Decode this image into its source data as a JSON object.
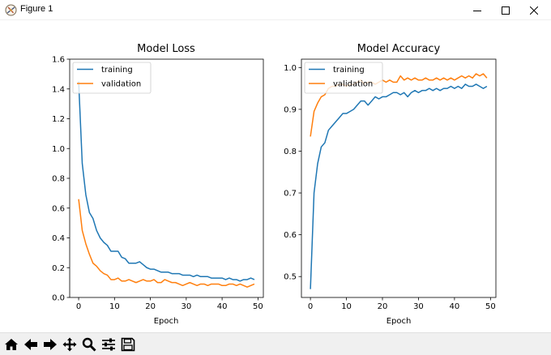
{
  "window": {
    "title": "Figure 1",
    "icons": [
      "figure-app-icon",
      "minimize-icon",
      "maximize-icon",
      "close-icon"
    ]
  },
  "toolbar": {
    "icons": [
      "home-icon",
      "back-arrow-icon",
      "forward-arrow-icon",
      "pan-move-icon",
      "zoom-magnifier-icon",
      "subplots-sliders-icon",
      "save-floppy-icon"
    ]
  },
  "colors": {
    "training": "#1f77b4",
    "validation": "#ff7f0e"
  },
  "chart_data": [
    {
      "type": "line",
      "title": "Model Loss",
      "xlabel": "Epoch",
      "ylabel": "",
      "xlim": [
        -2.5,
        51.5
      ],
      "ylim": [
        0.0,
        1.6
      ],
      "xticks": [
        "0",
        "10",
        "20",
        "30",
        "40",
        "50"
      ],
      "yticks": [
        "0.0",
        "0.2",
        "0.4",
        "0.6",
        "0.8",
        "1.0",
        "1.2",
        "1.4",
        "1.6"
      ],
      "grid": false,
      "legend": "upper-left",
      "legend_labels": [
        "training",
        "validation"
      ],
      "x": [
        0,
        1,
        2,
        3,
        4,
        5,
        6,
        7,
        8,
        9,
        10,
        11,
        12,
        13,
        14,
        15,
        16,
        17,
        18,
        19,
        20,
        21,
        22,
        23,
        24,
        25,
        26,
        27,
        28,
        29,
        30,
        31,
        32,
        33,
        34,
        35,
        36,
        37,
        38,
        39,
        40,
        41,
        42,
        43,
        44,
        45,
        46,
        47,
        48,
        49
      ],
      "series": [
        {
          "name": "training",
          "values": [
            1.45,
            0.9,
            0.69,
            0.57,
            0.53,
            0.45,
            0.4,
            0.37,
            0.35,
            0.31,
            0.31,
            0.31,
            0.27,
            0.26,
            0.23,
            0.23,
            0.23,
            0.24,
            0.22,
            0.2,
            0.19,
            0.19,
            0.18,
            0.17,
            0.17,
            0.17,
            0.16,
            0.16,
            0.16,
            0.15,
            0.15,
            0.15,
            0.14,
            0.15,
            0.14,
            0.14,
            0.14,
            0.13,
            0.13,
            0.13,
            0.13,
            0.12,
            0.13,
            0.12,
            0.12,
            0.11,
            0.12,
            0.12,
            0.13,
            0.12
          ]
        },
        {
          "name": "validation",
          "values": [
            0.66,
            0.45,
            0.36,
            0.29,
            0.23,
            0.21,
            0.18,
            0.16,
            0.15,
            0.12,
            0.12,
            0.13,
            0.11,
            0.11,
            0.12,
            0.11,
            0.1,
            0.11,
            0.12,
            0.11,
            0.11,
            0.12,
            0.1,
            0.1,
            0.12,
            0.11,
            0.1,
            0.1,
            0.09,
            0.08,
            0.09,
            0.1,
            0.09,
            0.08,
            0.09,
            0.09,
            0.08,
            0.09,
            0.09,
            0.09,
            0.08,
            0.08,
            0.09,
            0.09,
            0.08,
            0.09,
            0.08,
            0.07,
            0.08,
            0.09
          ]
        }
      ]
    },
    {
      "type": "line",
      "title": "Model Accuracy",
      "xlabel": "Epoch",
      "ylabel": "",
      "xlim": [
        -2.5,
        51.5
      ],
      "ylim": [
        0.45,
        1.02
      ],
      "xticks": [
        "0",
        "10",
        "20",
        "30",
        "40",
        "50"
      ],
      "yticks": [
        "0.5",
        "0.6",
        "0.7",
        "0.8",
        "0.9",
        "1.0"
      ],
      "grid": false,
      "legend": "upper-left",
      "legend_labels": [
        "training",
        "validation"
      ],
      "x": [
        0,
        1,
        2,
        3,
        4,
        5,
        6,
        7,
        8,
        9,
        10,
        11,
        12,
        13,
        14,
        15,
        16,
        17,
        18,
        19,
        20,
        21,
        22,
        23,
        24,
        25,
        26,
        27,
        28,
        29,
        30,
        31,
        32,
        33,
        34,
        35,
        36,
        37,
        38,
        39,
        40,
        41,
        42,
        43,
        44,
        45,
        46,
        47,
        48,
        49
      ],
      "series": [
        {
          "name": "training",
          "values": [
            0.47,
            0.7,
            0.77,
            0.81,
            0.82,
            0.85,
            0.86,
            0.87,
            0.88,
            0.89,
            0.89,
            0.895,
            0.9,
            0.91,
            0.92,
            0.92,
            0.91,
            0.92,
            0.93,
            0.925,
            0.93,
            0.93,
            0.935,
            0.94,
            0.94,
            0.935,
            0.94,
            0.93,
            0.94,
            0.945,
            0.94,
            0.945,
            0.945,
            0.95,
            0.945,
            0.95,
            0.945,
            0.95,
            0.95,
            0.955,
            0.95,
            0.955,
            0.95,
            0.96,
            0.955,
            0.955,
            0.96,
            0.955,
            0.95,
            0.955
          ]
        },
        {
          "name": "validation",
          "values": [
            0.835,
            0.895,
            0.915,
            0.93,
            0.935,
            0.95,
            0.955,
            0.955,
            0.96,
            0.96,
            0.955,
            0.96,
            0.96,
            0.965,
            0.97,
            0.96,
            0.965,
            0.965,
            0.96,
            0.965,
            0.97,
            0.965,
            0.97,
            0.965,
            0.965,
            0.98,
            0.97,
            0.975,
            0.97,
            0.975,
            0.97,
            0.97,
            0.975,
            0.97,
            0.97,
            0.975,
            0.97,
            0.975,
            0.97,
            0.975,
            0.97,
            0.975,
            0.98,
            0.975,
            0.98,
            0.975,
            0.985,
            0.98,
            0.985,
            0.975
          ]
        }
      ]
    }
  ]
}
